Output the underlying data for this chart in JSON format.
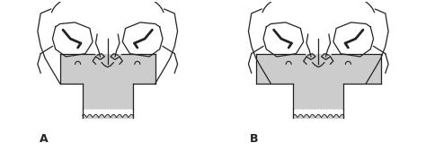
{
  "bg_color": "#ffffff",
  "label_A": "A",
  "label_B": "B",
  "label_fontsize": 9,
  "shading_color": "#cccccc",
  "line_color": "#222222",
  "line_width": 0.9,
  "fig_width": 4.74,
  "fig_height": 1.69,
  "dpi": 100
}
